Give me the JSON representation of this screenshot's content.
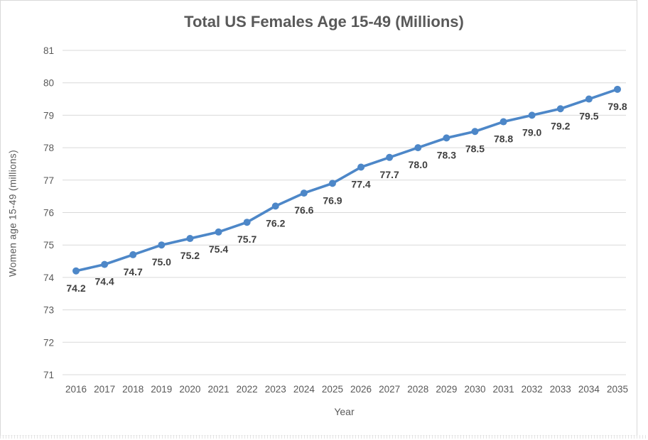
{
  "chart_data": {
    "type": "line",
    "title": "Total US Females Age 15-49 (Millions)",
    "xlabel": "Year",
    "ylabel": "Women age 15-49 (millions)",
    "x": [
      2016,
      2017,
      2018,
      2019,
      2020,
      2021,
      2022,
      2023,
      2024,
      2025,
      2026,
      2027,
      2028,
      2029,
      2030,
      2031,
      2032,
      2033,
      2034,
      2035
    ],
    "values": [
      74.2,
      74.4,
      74.7,
      75.0,
      75.2,
      75.4,
      75.7,
      76.2,
      76.6,
      76.9,
      77.4,
      77.7,
      78.0,
      78.3,
      78.5,
      78.8,
      79.0,
      79.2,
      79.5,
      79.8
    ],
    "data_labels": [
      "74.2",
      "74.4",
      "74.7",
      "75.0",
      "75.2",
      "75.4",
      "75.7",
      "76.2",
      "76.6",
      "76.9",
      "77.4",
      "77.7",
      "78.0",
      "78.3",
      "78.5",
      "78.8",
      "79.0",
      "79.2",
      "79.5",
      "79.8"
    ],
    "ylim": [
      71,
      81
    ],
    "ytick_step": 1,
    "yticks": [
      71,
      72,
      73,
      74,
      75,
      76,
      77,
      78,
      79,
      80,
      81
    ],
    "grid": "horizontal",
    "legend_position": "none",
    "marker": "circle"
  },
  "colors": {
    "line": "#4d87c8",
    "marker": "#4d87c8",
    "gridline": "#d9d9d9",
    "axis_text": "#595959",
    "title_text": "#595959",
    "data_label_text": "#404040",
    "frame_border": "#d9d9d9",
    "background": "#ffffff"
  }
}
